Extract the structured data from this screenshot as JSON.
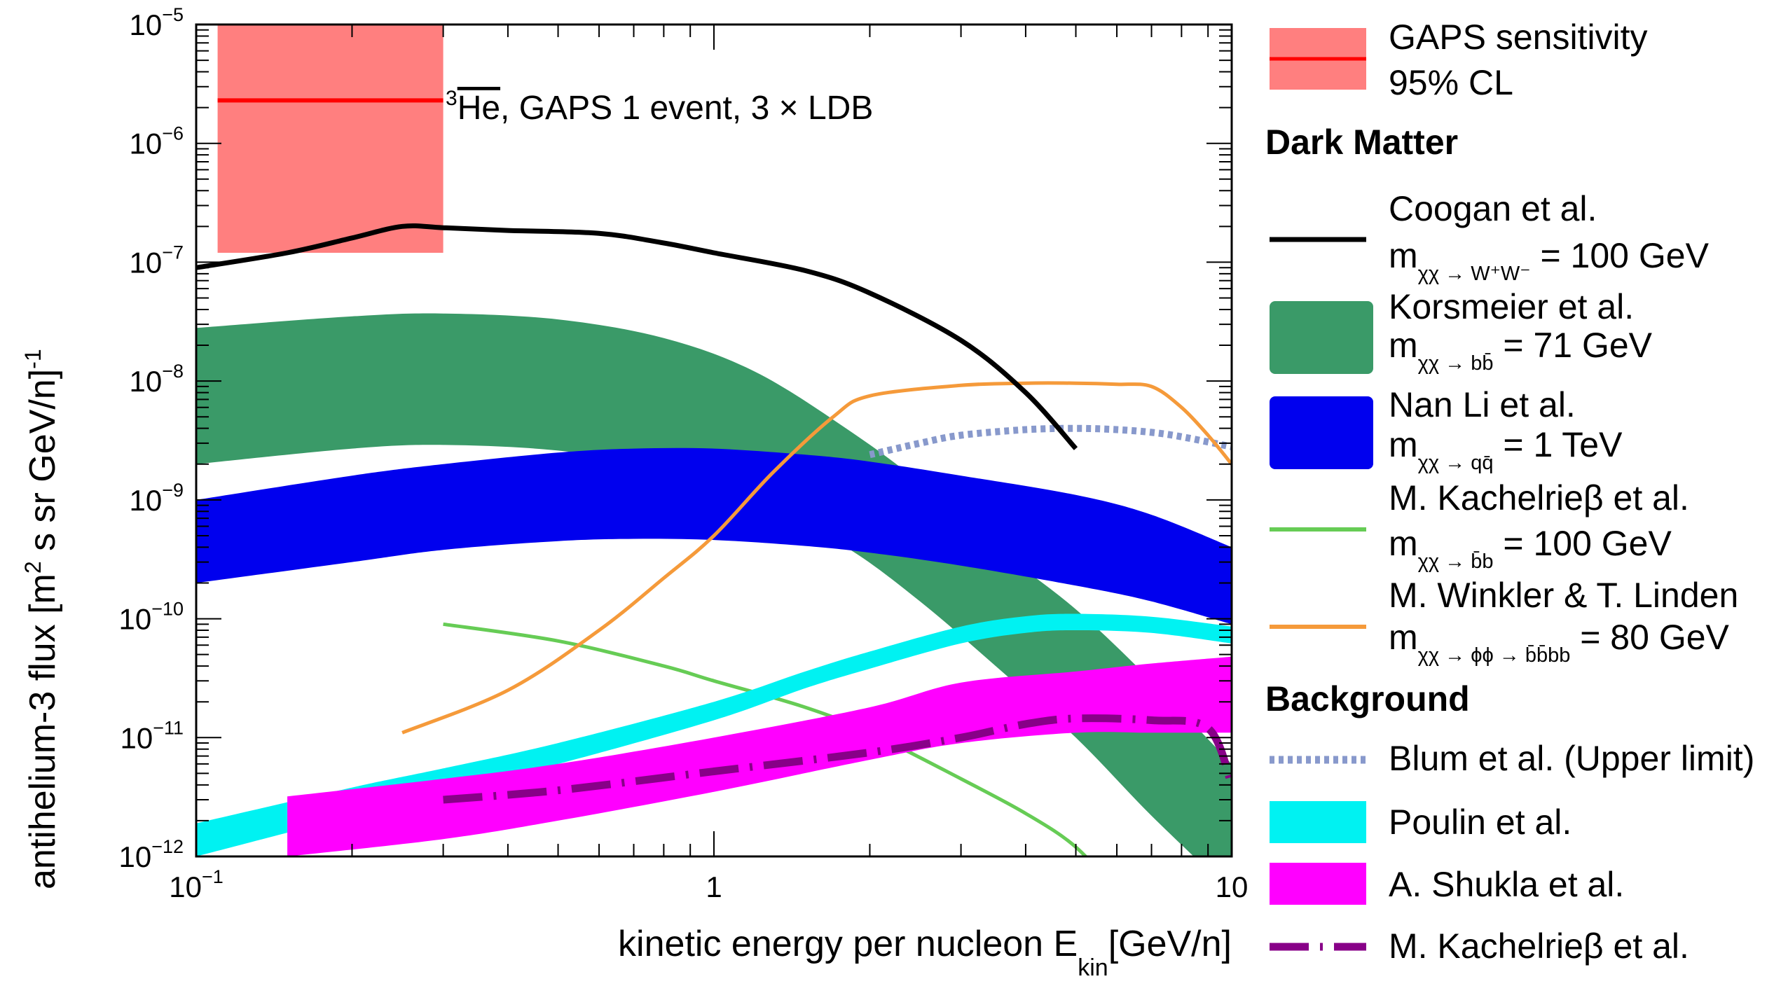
{
  "chart_data": {
    "type": "line",
    "title": "",
    "xlabel": "kinetic energy per nucleon E",
    "xlabel_sub": "kin",
    "xlabel_unit": "[GeV/n]",
    "ylabel": "antihelium-3 flux [m",
    "ylabel_sup2": "2",
    "ylabel_mid": " s sr GeV/n]",
    "ylabel_sup1": "-1",
    "x_scale": "log",
    "y_scale": "log",
    "xlim": [
      0.1,
      10
    ],
    "ylim": [
      1e-12,
      1e-05
    ],
    "grid": false,
    "legend_placement": "right",
    "x_ticks": [
      {
        "value": 0.1,
        "base": "10",
        "exp": "−1"
      },
      {
        "value": 1,
        "base": "1",
        "exp": ""
      },
      {
        "value": 10,
        "base": "10",
        "exp": ""
      }
    ],
    "y_ticks": [
      {
        "value": 1e-05,
        "base": "10",
        "exp": "−5"
      },
      {
        "value": 1e-06,
        "base": "10",
        "exp": "−6"
      },
      {
        "value": 1e-07,
        "base": "10",
        "exp": "−7"
      },
      {
        "value": 1e-08,
        "base": "10",
        "exp": "−8"
      },
      {
        "value": 1e-09,
        "base": "10",
        "exp": "−9"
      },
      {
        "value": 1e-10,
        "base": "10",
        "exp": "−10"
      },
      {
        "value": 1e-11,
        "base": "10",
        "exp": "−11"
      },
      {
        "value": 1e-12,
        "base": "10",
        "exp": "−12"
      }
    ],
    "annotation": {
      "sup": "3",
      "symbol": "He",
      "text": ", GAPS 1 event, 3 × LDB",
      "x": 0.31,
      "y": 2.3e-06
    },
    "series": [
      {
        "name": "GAPS sensitivity 95% CL",
        "kind": "box",
        "color": "#ff7f7f",
        "line_color": "#ff0000",
        "x_range": [
          0.11,
          0.3
        ],
        "y_range": [
          1.2e-07,
          1e-05
        ],
        "line_y": 2.3e-06
      },
      {
        "name": "Korsmeier et al.",
        "kind": "band",
        "color": "#3a9a68",
        "x": [
          0.1,
          0.2,
          0.3,
          0.5,
          0.8,
          1.2,
          1.8,
          2.5,
          3.5,
          5,
          7,
          10
        ],
        "lower": [
          2e-09,
          2.7e-09,
          2.9e-09,
          2.6e-09,
          1.9e-09,
          1e-09,
          4e-10,
          1.4e-10,
          4e-11,
          1e-11,
          2.2e-12,
          5e-13
        ],
        "upper": [
          2.8e-08,
          3.5e-08,
          3.7e-08,
          3.3e-08,
          2.3e-08,
          1.2e-08,
          4e-09,
          1.4e-09,
          4e-10,
          1.2e-10,
          3e-11,
          6e-12
        ]
      },
      {
        "name": "Nan Li et al.",
        "kind": "band",
        "color": "#0000ee",
        "x": [
          0.1,
          0.2,
          0.3,
          0.5,
          0.7,
          1,
          1.5,
          2,
          3,
          5,
          7,
          10
        ],
        "lower": [
          2e-10,
          3e-10,
          3.8e-10,
          4.5e-10,
          4.7e-10,
          4.6e-10,
          4.1e-10,
          3.6e-10,
          2.8e-10,
          1.9e-10,
          1.4e-10,
          9e-11
        ],
        "upper": [
          1e-09,
          1.6e-09,
          2e-09,
          2.5e-09,
          2.7e-09,
          2.7e-09,
          2.4e-09,
          2.1e-09,
          1.6e-09,
          1.1e-09,
          7.5e-10,
          4e-10
        ]
      },
      {
        "name": "Poulin et al.",
        "kind": "band",
        "color": "#00f2f2",
        "x": [
          0.1,
          0.2,
          0.3,
          0.5,
          1,
          1.5,
          2,
          3,
          4,
          5,
          7,
          10
        ],
        "lower": [
          1e-12,
          2.2e-12,
          3.5e-12,
          6e-12,
          1.4e-11,
          2.6e-11,
          3.8e-11,
          6.2e-11,
          7.6e-11,
          8e-11,
          7.6e-11,
          6.2e-11
        ],
        "upper": [
          1.9e-12,
          3.8e-12,
          5.5e-12,
          9e-12,
          2e-11,
          3.6e-11,
          5.3e-11,
          8.6e-11,
          1.05e-10,
          1.1e-10,
          1.04e-10,
          8.6e-11
        ]
      },
      {
        "name": "A. Shukla et al.",
        "kind": "band",
        "color": "#ff00ff",
        "x": [
          0.15,
          0.3,
          0.5,
          1,
          2,
          3,
          5,
          7,
          10
        ],
        "lower": [
          1e-12,
          1.4e-12,
          2e-12,
          3.5e-12,
          6.5e-12,
          9e-12,
          1.1e-11,
          1.1e-11,
          1.1e-11
        ],
        "upper": [
          3.2e-12,
          4.5e-12,
          6e-12,
          1e-11,
          1.8e-11,
          2.9e-11,
          3.6e-11,
          4.2e-11,
          4.8e-11
        ]
      },
      {
        "name": "Coogan et al.",
        "kind": "line",
        "color": "#000000",
        "x": [
          0.1,
          0.15,
          0.2,
          0.25,
          0.3,
          0.4,
          0.6,
          0.8,
          1,
          1.5,
          2,
          3,
          4,
          5
        ],
        "values": [
          9e-08,
          1.2e-07,
          1.6e-07,
          2e-07,
          1.95e-07,
          1.85e-07,
          1.75e-07,
          1.45e-07,
          1.2e-07,
          8.5e-08,
          5.5e-08,
          2.2e-08,
          8e-09,
          2.7e-09
        ]
      },
      {
        "name": "M. Kachelrieβ et al. (Dark Matter)",
        "kind": "line",
        "color": "#66cc55",
        "x": [
          0.3,
          0.5,
          0.8,
          1,
          1.5,
          2,
          3,
          4,
          5,
          6
        ],
        "values": [
          9e-11,
          6.5e-11,
          4e-11,
          3e-11,
          1.8e-11,
          1.1e-11,
          4.5e-12,
          2.3e-12,
          1.2e-12,
          5e-13
        ]
      },
      {
        "name": "M. Winkler & T. Linden",
        "kind": "line",
        "color": "#f59a3a",
        "x": [
          0.25,
          0.4,
          0.6,
          0.8,
          1,
          1.3,
          1.7,
          2,
          3,
          4,
          5,
          6,
          7,
          8,
          9,
          10
        ],
        "values": [
          1.1e-11,
          2.5e-11,
          8e-11,
          2.2e-10,
          5e-10,
          1.7e-09,
          5e-09,
          7.5e-09,
          9.2e-09,
          9.6e-09,
          9.6e-09,
          9.4e-09,
          9e-09,
          6e-09,
          3.5e-09,
          2e-09
        ]
      },
      {
        "name": "Blum et al. (Upper limit)",
        "kind": "dotted",
        "color": "#8899cc",
        "x": [
          2,
          2.5,
          3,
          4,
          5,
          6,
          7,
          8,
          10
        ],
        "values": [
          2.4e-09,
          3e-09,
          3.5e-09,
          3.9e-09,
          4e-09,
          3.9e-09,
          3.7e-09,
          3.4e-09,
          2.8e-09
        ]
      },
      {
        "name": "M. Kachelrieβ et al. (Background)",
        "kind": "dashed",
        "color": "#880088",
        "x": [
          0.3,
          0.5,
          1,
          2,
          3,
          4,
          5,
          7,
          9,
          10
        ],
        "values": [
          3e-12,
          3.6e-12,
          5.2e-12,
          7.5e-12,
          1e-11,
          1.3e-11,
          1.45e-11,
          1.4e-11,
          1.2e-11,
          4e-12
        ]
      }
    ]
  },
  "legend": {
    "gaps": {
      "line1": "GAPS sensitivity",
      "line2": "95% CL"
    },
    "dm_header": "Dark Matter",
    "bg_header": "Background",
    "coogan": {
      "title": "Coogan et al.",
      "m": "m",
      "sub": "χχ → W⁺W⁻",
      "value": " = 100 GeV"
    },
    "korsmeier": {
      "title": "Korsmeier et al.",
      "m": "m",
      "sub": "χχ → bb̄",
      "value": " = 71 GeV"
    },
    "nanli": {
      "title": "Nan Li et al.",
      "m": "m",
      "sub": "χχ → qq̄",
      "value": " = 1 TeV"
    },
    "kach_dm": {
      "title": "M. Kachelrieβ et al.",
      "m": "m",
      "sub": "χχ → b̄b",
      "value": " = 100 GeV"
    },
    "winkler": {
      "title": "M. Winkler & T. Linden",
      "m": "m",
      "sub": "χχ → ϕϕ → b̄b̄bb",
      "value": " = 80 GeV"
    },
    "blum": "Blum et al. (Upper limit)",
    "poulin": "Poulin et al.",
    "shukla": "A. Shukla et al.",
    "kach_bg": "M. Kachelrieβ et al."
  }
}
